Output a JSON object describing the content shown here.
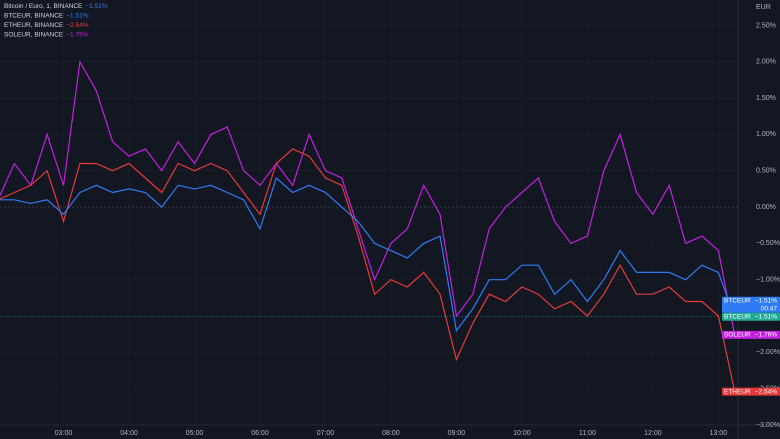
{
  "chart_data": {
    "type": "line",
    "title": "Bitcoin / Euro, 1, BINANCE",
    "title_value": "−1.51%",
    "currency": "EUR",
    "x": [
      2.0,
      2.25,
      2.5,
      2.75,
      3.0,
      3.25,
      3.5,
      3.75,
      4.0,
      4.25,
      4.5,
      4.75,
      5.0,
      5.25,
      5.5,
      5.75,
      6.0,
      6.25,
      6.5,
      6.75,
      7.0,
      7.25,
      7.5,
      7.75,
      8.0,
      8.25,
      8.5,
      8.75,
      9.0,
      9.25,
      9.5,
      9.75,
      10.0,
      10.25,
      10.5,
      10.75,
      11.0,
      11.25,
      11.5,
      11.75,
      12.0,
      12.25,
      12.5,
      12.75,
      13.0,
      13.25
    ],
    "series": [
      {
        "name": "BTCEUR",
        "exchange": "BINANCE",
        "color": "#2f7bf5",
        "last_label": "−1.51%",
        "values": [
          0.1,
          0.1,
          0.05,
          0.1,
          -0.1,
          0.2,
          0.3,
          0.2,
          0.25,
          0.2,
          0.0,
          0.3,
          0.25,
          0.3,
          0.2,
          0.1,
          -0.3,
          0.4,
          0.2,
          0.3,
          0.2,
          0.0,
          -0.2,
          -0.5,
          -0.6,
          -0.7,
          -0.5,
          -0.4,
          -1.7,
          -1.4,
          -1.0,
          -1.0,
          -0.8,
          -0.8,
          -1.2,
          -1.0,
          -1.3,
          -1.0,
          -0.6,
          -0.9,
          -0.9,
          -0.9,
          -1.0,
          -0.8,
          -0.9,
          -1.51
        ]
      },
      {
        "name": "ETHEUR",
        "exchange": "BINANCE",
        "color": "#e5393a",
        "last_label": "−2.54%",
        "values": [
          0.1,
          0.2,
          0.3,
          0.5,
          -0.2,
          0.6,
          0.6,
          0.5,
          0.6,
          0.4,
          0.2,
          0.6,
          0.5,
          0.6,
          0.5,
          0.2,
          -0.1,
          0.6,
          0.8,
          0.7,
          0.4,
          0.3,
          -0.4,
          -1.2,
          -1.0,
          -1.1,
          -0.9,
          -1.2,
          -2.1,
          -1.6,
          -1.2,
          -1.3,
          -1.1,
          -1.2,
          -1.4,
          -1.3,
          -1.5,
          -1.2,
          -0.8,
          -1.2,
          -1.2,
          -1.1,
          -1.3,
          -1.3,
          -1.5,
          -2.54
        ]
      },
      {
        "name": "SOLEUR",
        "exchange": "BINANCE",
        "color": "#c21fe0",
        "last_label": "−1.76%",
        "values": [
          0.1,
          0.6,
          0.3,
          1.0,
          0.3,
          2.0,
          1.6,
          0.9,
          0.7,
          0.8,
          0.5,
          0.9,
          0.6,
          1.0,
          1.1,
          0.5,
          0.3,
          0.6,
          0.3,
          1.0,
          0.5,
          0.4,
          -0.3,
          -1.0,
          -0.5,
          -0.3,
          0.3,
          -0.1,
          -1.5,
          -1.2,
          -0.3,
          0.0,
          0.2,
          0.4,
          -0.2,
          -0.5,
          -0.4,
          0.5,
          1.0,
          0.2,
          -0.1,
          0.3,
          -0.5,
          -0.4,
          -0.6,
          -1.76
        ]
      }
    ],
    "main_symbol": {
      "name": "BTCEUR",
      "label": "−1.51%",
      "countdown": "00:47",
      "color": "#22ab94"
    },
    "ylim": [
      -3.0,
      2.85
    ],
    "yticks": [
      {
        "value": 2.5,
        "label": "2.50%"
      },
      {
        "value": 2.0,
        "label": "2.00%"
      },
      {
        "value": 1.5,
        "label": "1.50%"
      },
      {
        "value": 1.0,
        "label": "1.00%"
      },
      {
        "value": 0.5,
        "label": "0.50%"
      },
      {
        "value": 0.0,
        "label": "0.00%"
      },
      {
        "value": -0.5,
        "label": "−0.50%"
      },
      {
        "value": -1.0,
        "label": "−1.00%"
      },
      {
        "value": -1.5,
        "label": "−1.50%"
      },
      {
        "value": -2.0,
        "label": "−2.00%"
      },
      {
        "value": -2.5,
        "label": "−2.50%"
      },
      {
        "value": -3.0,
        "label": "−3.00%"
      }
    ],
    "xlim": [
      2.03,
      13.3
    ],
    "xticks": [
      {
        "value": 3,
        "label": "03:00"
      },
      {
        "value": 4,
        "label": "04:00"
      },
      {
        "value": 5,
        "label": "05:00"
      },
      {
        "value": 6,
        "label": "06:00"
      },
      {
        "value": 7,
        "label": "07:00"
      },
      {
        "value": 8,
        "label": "08:00"
      },
      {
        "value": 9,
        "label": "09:00"
      },
      {
        "value": 10,
        "label": "10:00"
      },
      {
        "value": 11,
        "label": "11:00"
      },
      {
        "value": 12,
        "label": "12:00"
      },
      {
        "value": 13,
        "label": "13:00"
      }
    ],
    "grid": true
  }
}
